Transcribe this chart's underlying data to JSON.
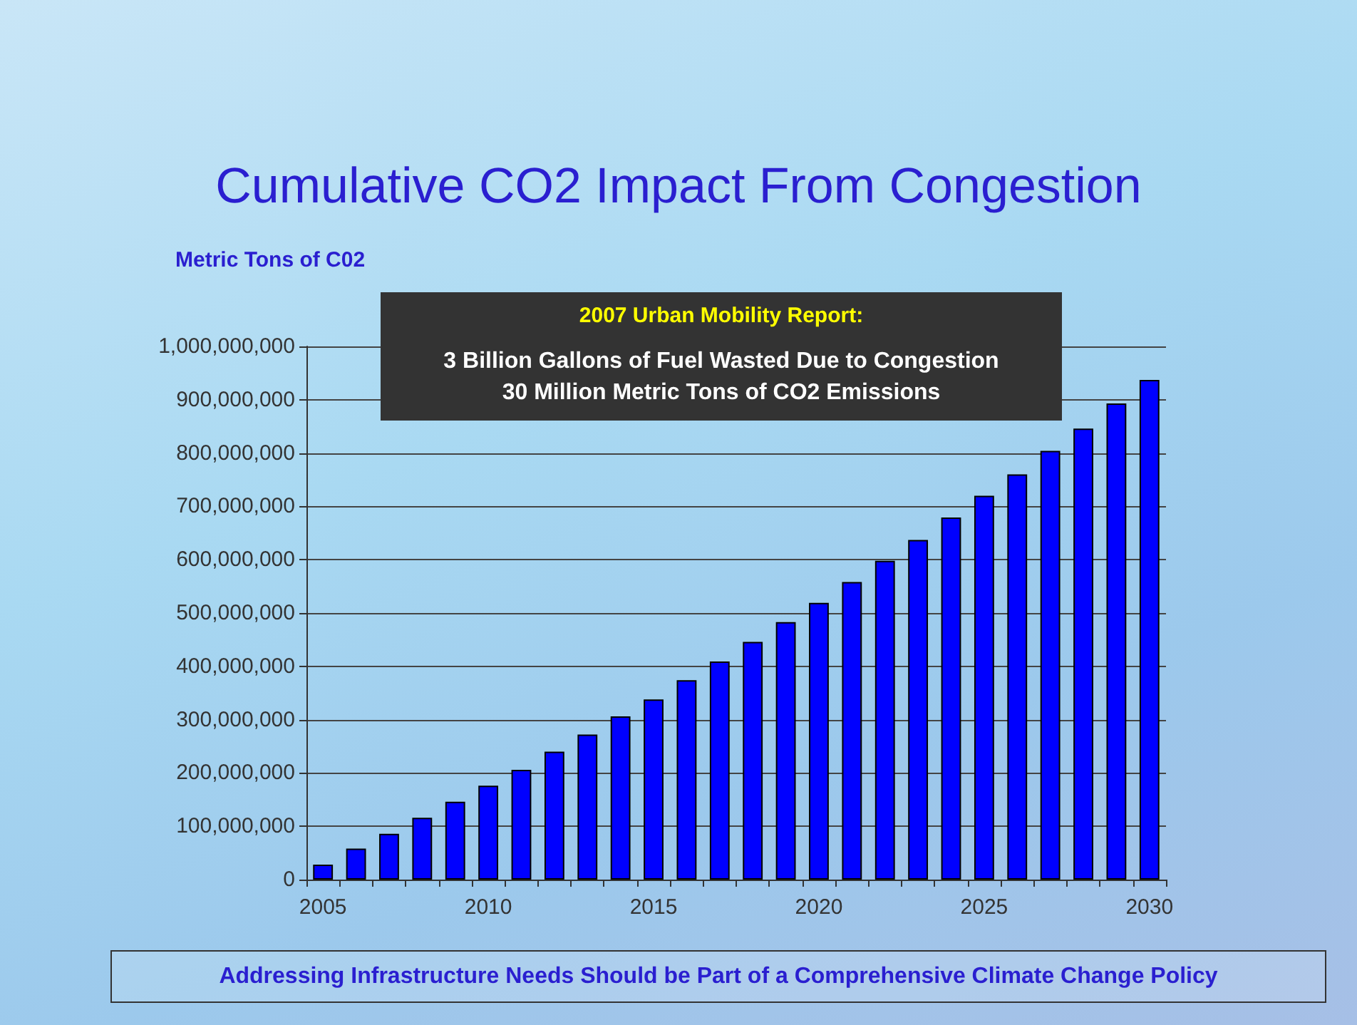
{
  "chart_data": {
    "type": "bar",
    "title": "Cumulative CO2 Impact From Congestion",
    "ylabel": "Metric Tons of C02",
    "categories": [
      "2005",
      null,
      null,
      null,
      null,
      "2010",
      null,
      null,
      null,
      null,
      "2015",
      null,
      null,
      null,
      null,
      "2020",
      null,
      null,
      null,
      null,
      "2025",
      null,
      null,
      null,
      null,
      "2030"
    ],
    "values": [
      28000000,
      58000000,
      86000000,
      116000000,
      146000000,
      176000000,
      206000000,
      240000000,
      272000000,
      306000000,
      338000000,
      374000000,
      409000000,
      446000000,
      483000000,
      519000000,
      558000000,
      598000000,
      637000000,
      679000000,
      720000000,
      760000000,
      804000000,
      846000000,
      893000000,
      937000000
    ],
    "color": "#0000ff",
    "ylim": [
      0,
      1000000000
    ],
    "yticks": [
      {
        "value": 0,
        "label": "0"
      },
      {
        "value": 100000000,
        "label": "100,000,000"
      },
      {
        "value": 200000000,
        "label": "200,000,000"
      },
      {
        "value": 300000000,
        "label": "300,000,000"
      },
      {
        "value": 400000000,
        "label": "400,000,000"
      },
      {
        "value": 500000000,
        "label": "500,000,000"
      },
      {
        "value": 600000000,
        "label": "600,000,000"
      },
      {
        "value": 700000000,
        "label": "700,000,000"
      },
      {
        "value": 800000000,
        "label": "800,000,000"
      },
      {
        "value": 900000000,
        "label": "900,000,000"
      },
      {
        "value": 1000000000,
        "label": "1,000,000,000"
      }
    ],
    "grid": "y",
    "annotations": [
      "2007 Urban Mobility Report:",
      "3 Billion Gallons of Fuel Wasted Due to Congestion",
      "30 Million Metric Tons of CO2 Emissions",
      "Addressing Infrastructure Needs Should be Part of a Comprehensive Climate Change Policy"
    ]
  }
}
